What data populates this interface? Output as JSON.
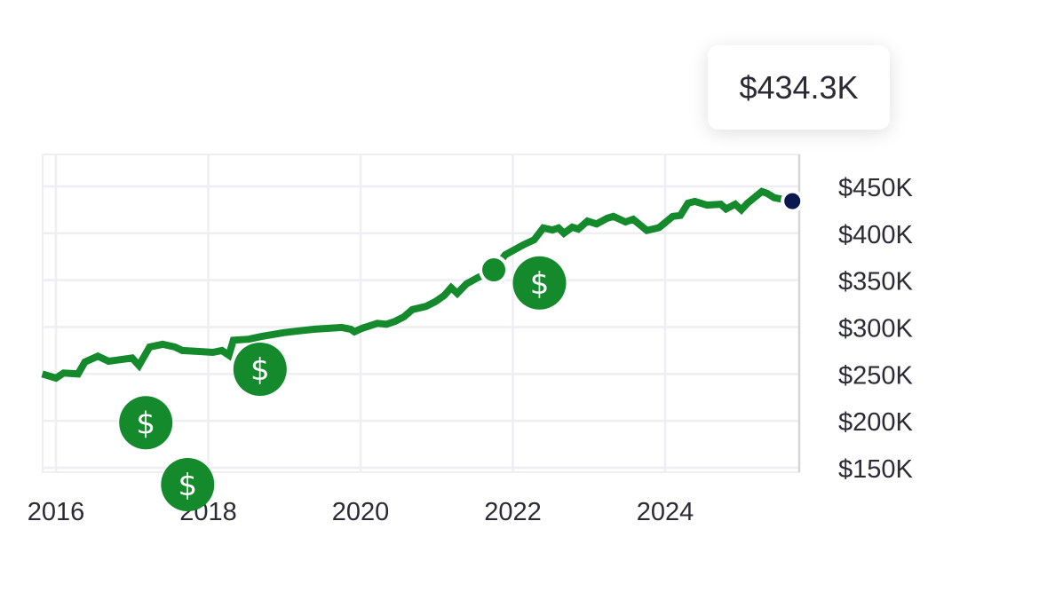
{
  "chart_data": {
    "type": "line",
    "title": "",
    "xlabel": "",
    "ylabel": "",
    "x_ticks": [
      "2016",
      "2018",
      "2020",
      "2022",
      "2024"
    ],
    "y_ticks": [
      "$150K",
      "$200K",
      "$250K",
      "$300K",
      "$350K",
      "$400K",
      "$450K"
    ],
    "y_tick_values": [
      150,
      200,
      250,
      300,
      350,
      400,
      450
    ],
    "x_tick_values": [
      2016,
      2018,
      2020,
      2022,
      2024
    ],
    "xlim": [
      2015.82,
      2025.77
    ],
    "ylim": [
      150,
      484
    ],
    "y_unit": "thousand USD",
    "grid": true,
    "series": [
      {
        "color": "#148a2c",
        "points": [
          [
            2015.82,
            250
          ],
          [
            2016.0,
            245.6
          ],
          [
            2016.1,
            251
          ],
          [
            2016.29,
            250
          ],
          [
            2016.38,
            262.7
          ],
          [
            2016.55,
            269
          ],
          [
            2016.69,
            263.6
          ],
          [
            2017.0,
            267
          ],
          [
            2017.09,
            259
          ],
          [
            2017.23,
            278.8
          ],
          [
            2017.4,
            281.6
          ],
          [
            2017.56,
            278.8
          ],
          [
            2017.66,
            275
          ],
          [
            2017.88,
            274
          ],
          [
            2018.06,
            273
          ],
          [
            2018.18,
            275
          ],
          [
            2018.27,
            270
          ],
          [
            2018.33,
            286
          ],
          [
            2018.53,
            287
          ],
          [
            2018.7,
            290
          ],
          [
            2018.99,
            294
          ],
          [
            2019.2,
            296
          ],
          [
            2019.4,
            297.7
          ],
          [
            2019.58,
            298.7
          ],
          [
            2019.75,
            299.6
          ],
          [
            2019.87,
            297.7
          ],
          [
            2019.92,
            295
          ],
          [
            2020.02,
            298.7
          ],
          [
            2020.22,
            304
          ],
          [
            2020.34,
            303
          ],
          [
            2020.45,
            306
          ],
          [
            2020.57,
            311
          ],
          [
            2020.68,
            318.6
          ],
          [
            2020.86,
            322
          ],
          [
            2020.98,
            327
          ],
          [
            2021.1,
            333.7
          ],
          [
            2021.19,
            342
          ],
          [
            2021.27,
            336
          ],
          [
            2021.39,
            346
          ],
          [
            2021.54,
            352.7
          ],
          [
            2021.75,
            361
          ],
          [
            2021.9,
            377
          ],
          [
            2022.14,
            387.7
          ],
          [
            2022.28,
            393
          ],
          [
            2022.4,
            405.7
          ],
          [
            2022.52,
            403.5
          ],
          [
            2022.6,
            405.7
          ],
          [
            2022.67,
            400
          ],
          [
            2022.78,
            406.6
          ],
          [
            2022.86,
            404.5
          ],
          [
            2022.98,
            413
          ],
          [
            2023.1,
            410
          ],
          [
            2023.24,
            416
          ],
          [
            2023.32,
            418
          ],
          [
            2023.48,
            412
          ],
          [
            2023.58,
            415
          ],
          [
            2023.76,
            403
          ],
          [
            2023.92,
            406
          ],
          [
            2024.1,
            418
          ],
          [
            2024.2,
            419
          ],
          [
            2024.3,
            432
          ],
          [
            2024.39,
            434
          ],
          [
            2024.55,
            430
          ],
          [
            2024.73,
            431
          ],
          [
            2024.8,
            426
          ],
          [
            2024.92,
            431
          ],
          [
            2025.0,
            425
          ],
          [
            2025.08,
            432
          ],
          [
            2025.27,
            444.5
          ],
          [
            2025.34,
            442.5
          ],
          [
            2025.43,
            438
          ],
          [
            2025.67,
            434.3
          ]
        ]
      }
    ],
    "highlight_point": {
      "x": 2021.75,
      "y": 361,
      "color": "#148a2c"
    },
    "current_point": {
      "x": 2025.67,
      "y": 434.3,
      "color": "#0b1a4e"
    },
    "sale_markers": [
      {
        "icon": "dollar-icon",
        "x": 2017.18,
        "y": 198
      },
      {
        "icon": "dollar-icon",
        "x": 2017.73,
        "y": 132
      },
      {
        "icon": "dollar-icon",
        "x": 2018.68,
        "y": 255
      },
      {
        "icon": "dollar-icon",
        "x": 2022.35,
        "y": 347
      }
    ],
    "tooltip": "$434.3K"
  }
}
